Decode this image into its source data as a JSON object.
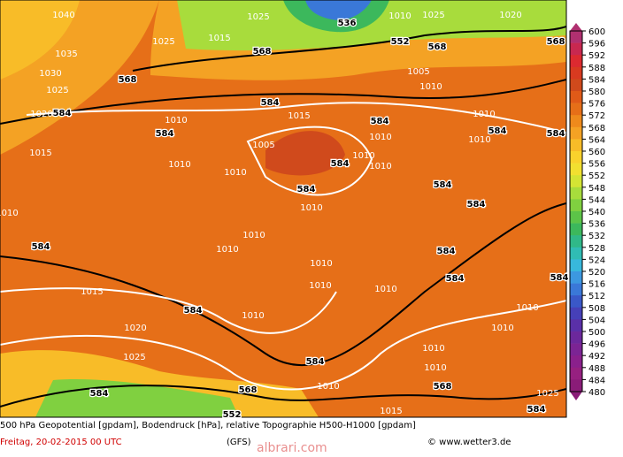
{
  "map": {
    "contour_labels": [
      "1040",
      "1035",
      "1030",
      "1025",
      "1020",
      "584",
      "1015",
      "1010",
      "584",
      "568",
      "1025",
      "1015",
      "1025",
      "568",
      "1010",
      "1025",
      "552",
      "568",
      "536",
      "1020",
      "568",
      "1010",
      "1005",
      "584",
      "1015",
      "1010",
      "584",
      "1005",
      "584",
      "584",
      "1010",
      "1010",
      "584",
      "584",
      "1010",
      "1010",
      "1010",
      "1010",
      "1010",
      "584",
      "1010",
      "584",
      "584",
      "1010",
      "1010",
      "584",
      "584",
      "584",
      "1015",
      "1010",
      "1010",
      "1010",
      "584",
      "1010",
      "1010",
      "1010",
      "1020",
      "1025",
      "584",
      "1010",
      "1010",
      "584",
      "568",
      "1010",
      "568",
      "1025",
      "552",
      "584",
      "1015"
    ],
    "colorbar": {
      "ticks": [
        600,
        596,
        592,
        588,
        584,
        580,
        576,
        572,
        568,
        564,
        560,
        556,
        552,
        548,
        544,
        540,
        536,
        532,
        528,
        524,
        520,
        516,
        512,
        508,
        504,
        500,
        496,
        492,
        488,
        484,
        480
      ],
      "colors": [
        "#b03070",
        "#c82850",
        "#dc2a30",
        "#d83a20",
        "#d04a1c",
        "#e05a18",
        "#e66f18",
        "#ee8a1c",
        "#f4a224",
        "#f8bc28",
        "#fad22c",
        "#f2e030",
        "#d4e434",
        "#a8dc3c",
        "#80d040",
        "#5cc448",
        "#3cb85c",
        "#30b888",
        "#30bcb4",
        "#38b8dc",
        "#3c98e0",
        "#3a78d8",
        "#3a58c8",
        "#4640b8",
        "#5a30a8",
        "#6c289c",
        "#7c2494",
        "#8a208c",
        "#962080",
        "#8a1c78"
      ]
    },
    "footer": {
      "line1": "500 hPa Geopotential [gpdam], Bodendruck [hPa], relative Topographie H500-H1000 [gpdam]",
      "date": "Freitag, 20-02-2015  00 UTC",
      "model": "(GFS)",
      "copyright": "© www.wetter3.de",
      "watermark": "albrari.com"
    }
  }
}
